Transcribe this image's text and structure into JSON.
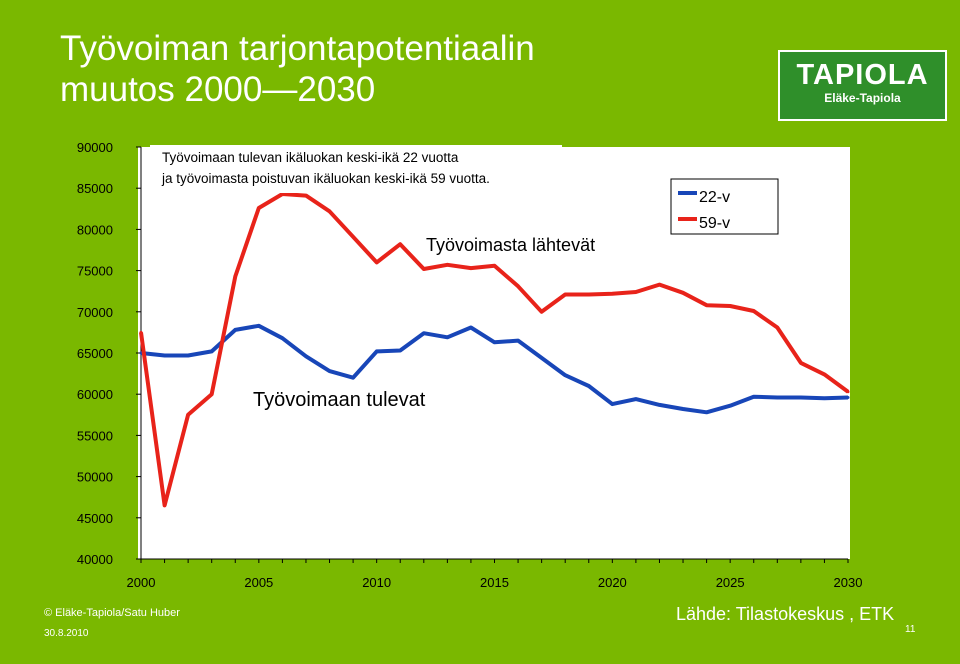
{
  "slide": {
    "title_line1": "Työvoiman tarjontapotentiaalin",
    "title_line2": "muutos 2000—2030",
    "logo_text": "TAPIOLA",
    "logo_subtext": "Eläke-Tapiola",
    "footer_copyright": "© Eläke-Tapiola/Satu Huber",
    "footer_date": "30.8.2010",
    "source": "Lähde: Tilastokeskus , ETK",
    "page_number": "11",
    "background_color": "#7ab800"
  },
  "chart_data": {
    "type": "line",
    "caption_line1": "Työvoimaan tulevan ikäluokan keski-ikä 22 vuotta",
    "caption_line2": "ja työvoimasta poistuvan ikäluokan keski-ikä 59 vuotta.",
    "annotation_red": "Työvoimasta lähtevät",
    "annotation_blue": "Työvoimaan tulevat",
    "legend_position": "top-right",
    "grid": false,
    "xlim": [
      2000,
      2030
    ],
    "ylim": [
      40000,
      90000
    ],
    "x_ticks": [
      2000,
      2005,
      2010,
      2015,
      2020,
      2025,
      2030
    ],
    "y_ticks": [
      40000,
      45000,
      50000,
      55000,
      60000,
      65000,
      70000,
      75000,
      80000,
      85000,
      90000
    ],
    "x": [
      2000,
      2001,
      2002,
      2003,
      2004,
      2005,
      2006,
      2007,
      2008,
      2009,
      2010,
      2011,
      2012,
      2013,
      2014,
      2015,
      2016,
      2017,
      2018,
      2019,
      2020,
      2021,
      2022,
      2023,
      2024,
      2025,
      2026,
      2027,
      2028,
      2029,
      2030
    ],
    "series": [
      {
        "name": "22-v",
        "color": "#1846b8",
        "values": [
          65000,
          64700,
          64700,
          65200,
          67800,
          68300,
          66800,
          64600,
          62800,
          62000,
          65200,
          65300,
          67400,
          66900,
          68100,
          66300,
          66500,
          64400,
          62300,
          61000,
          58800,
          59400,
          58700,
          58200,
          57800,
          58600,
          59700,
          59600,
          59600,
          59500,
          59600
        ]
      },
      {
        "name": "59-v",
        "color": "#e8231a",
        "values": [
          67500,
          46500,
          57500,
          60000,
          74300,
          82600,
          84300,
          84100,
          82200,
          79100,
          76000,
          78200,
          75200,
          75700,
          75300,
          75600,
          73100,
          70000,
          72100,
          72100,
          72200,
          72400,
          73300,
          72300,
          70800,
          70700,
          70100,
          68100,
          63800,
          62400,
          60300
        ]
      }
    ]
  }
}
